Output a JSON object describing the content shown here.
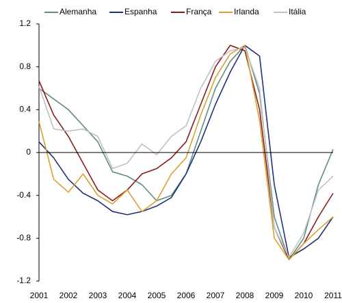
{
  "chart_data": {
    "type": "line",
    "x": [
      2001,
      2001.5,
      2002,
      2002.5,
      2003,
      2003.5,
      2004,
      2004.5,
      2005,
      2005.5,
      2006,
      2006.5,
      2007,
      2007.5,
      2008,
      2008.5,
      2009,
      2009.5,
      2010,
      2010.5,
      2011
    ],
    "xlim": [
      2001,
      2011
    ],
    "xticks": [
      2001,
      2002,
      2003,
      2004,
      2005,
      2006,
      2007,
      2008,
      2009,
      2010,
      2011
    ],
    "ylim": [
      -1.2,
      1.2
    ],
    "yticks": [
      1.2,
      0.8,
      0.4,
      0,
      -0.4,
      -0.8,
      -1.2
    ],
    "series": [
      {
        "name": "Alemanha",
        "color": "#5b8f7a",
        "values": [
          0.6,
          0.5,
          0.4,
          0.25,
          0.1,
          -0.18,
          -0.22,
          -0.3,
          -0.45,
          -0.4,
          -0.2,
          0.2,
          0.6,
          0.85,
          1.0,
          0.55,
          -0.6,
          -1.0,
          -0.8,
          -0.3,
          0.03
        ]
      },
      {
        "name": "Espanha",
        "color": "#1f2f7a",
        "values": [
          0.1,
          -0.05,
          -0.25,
          -0.38,
          -0.45,
          -0.55,
          -0.58,
          -0.55,
          -0.5,
          -0.42,
          -0.2,
          0.1,
          0.45,
          0.75,
          1.0,
          0.9,
          -0.3,
          -0.98,
          -0.9,
          -0.8,
          -0.6
        ]
      },
      {
        "name": "França",
        "color": "#8b1a1a",
        "values": [
          0.67,
          0.35,
          0.15,
          -0.1,
          -0.35,
          -0.45,
          -0.35,
          -0.2,
          -0.15,
          -0.05,
          0.1,
          0.45,
          0.8,
          1.0,
          0.95,
          0.4,
          -0.7,
          -1.0,
          -0.85,
          -0.6,
          -0.38
        ]
      },
      {
        "name": "Irlanda",
        "color": "#d9a030",
        "values": [
          0.29,
          -0.25,
          -0.37,
          -0.2,
          -0.4,
          -0.48,
          -0.35,
          -0.55,
          -0.45,
          -0.2,
          -0.05,
          0.35,
          0.7,
          0.92,
          1.0,
          0.3,
          -0.8,
          -1.0,
          -0.85,
          -0.72,
          -0.6
        ]
      },
      {
        "name": "Itália",
        "color": "#c0c0c0",
        "values": [
          0.62,
          0.22,
          0.2,
          0.22,
          0.15,
          -0.15,
          -0.1,
          0.08,
          -0.02,
          0.15,
          0.25,
          0.6,
          0.85,
          0.95,
          0.98,
          0.6,
          -0.7,
          -0.98,
          -0.75,
          -0.35,
          -0.22
        ]
      }
    ]
  }
}
